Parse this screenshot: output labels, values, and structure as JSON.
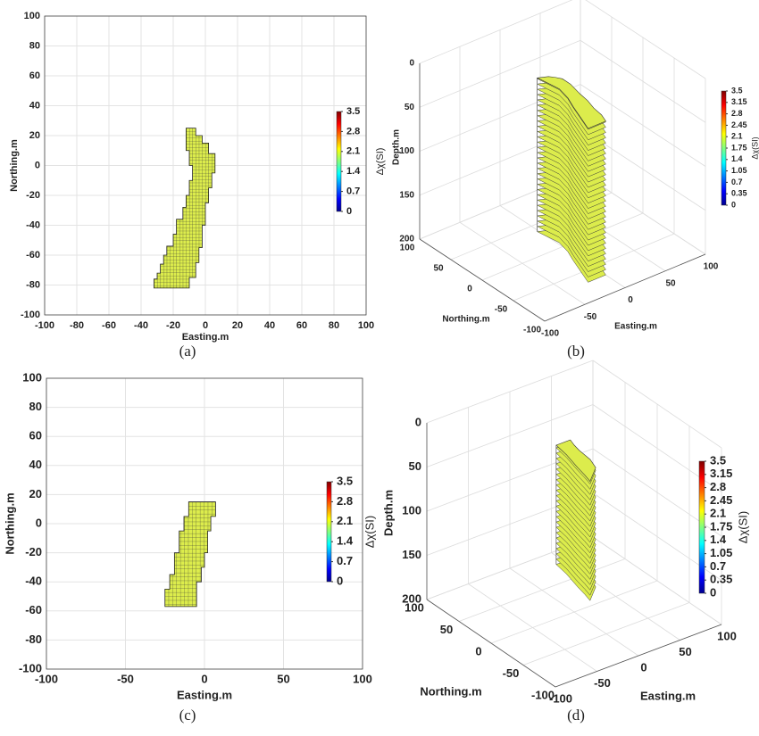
{
  "chart_data": [
    {
      "type": "voxel-map",
      "caption": "(a)",
      "xlabel": "Easting.m",
      "ylabel": "Northing.m",
      "color": "#dcec4c",
      "xlim": [
        -100,
        100
      ],
      "xticks": [
        -100,
        -80,
        -60,
        -40,
        -20,
        0,
        20,
        40,
        60,
        80,
        100
      ],
      "ylim": [
        -100,
        100
      ],
      "yticks": [
        -100,
        -80,
        -60,
        -40,
        -20,
        0,
        20,
        40,
        60,
        80,
        100
      ],
      "x": [
        -12,
        -6,
        -6,
        -2,
        -2,
        2,
        2,
        6,
        6,
        4,
        4,
        2,
        2,
        0,
        0,
        -2,
        -2,
        -4,
        -4,
        -6,
        -6,
        -10,
        -10,
        -32,
        -32,
        -30,
        -30,
        -28,
        -28,
        -26,
        -26,
        -24,
        -24,
        -20,
        -20,
        -18,
        -18,
        -14,
        -14,
        -12,
        -12,
        -10,
        -10,
        -8,
        -8,
        -10,
        -10,
        -12
      ],
      "y": [
        25,
        25,
        20,
        20,
        15,
        15,
        8,
        8,
        -5,
        -5,
        -15,
        -15,
        -25,
        -25,
        -40,
        -40,
        -55,
        -55,
        -65,
        -65,
        -75,
        -75,
        -82,
        -82,
        -76,
        -76,
        -72,
        -72,
        -66,
        -66,
        -60,
        -60,
        -54,
        -54,
        -46,
        -46,
        -36,
        -36,
        -28,
        -28,
        -20,
        -20,
        -10,
        -10,
        0,
        0,
        10,
        10
      ],
      "colorbar": {
        "label": "Δχ(SI)",
        "lim": [
          0,
          3.5
        ],
        "ticks": [
          0,
          0.7,
          1.4,
          2.1,
          2.8,
          3.5
        ]
      }
    },
    {
      "type": "voxel-3d",
      "caption": "(b)",
      "xlabel": "Easting.m",
      "ylabel": "Northing.m",
      "zlabel": "Depth.m",
      "color": "#dcec4c",
      "xlim": [
        -100,
        100
      ],
      "xticks": [
        -100,
        -50,
        0,
        50,
        100
      ],
      "ylim": [
        -100,
        100
      ],
      "yticks": [
        -100,
        -50,
        0,
        50,
        100
      ],
      "zlim": [
        0,
        200
      ],
      "zticks": [
        0,
        50,
        100,
        150,
        200
      ],
      "body": {
        "x": [
          -12,
          -2,
          2,
          6,
          6,
          2,
          0,
          -4,
          -6,
          -10,
          -32,
          -28,
          -24,
          -18,
          -12,
          -8,
          -10
        ],
        "y": [
          25,
          20,
          15,
          8,
          -5,
          -25,
          -40,
          -55,
          -70,
          -82,
          -82,
          -70,
          -58,
          -40,
          -24,
          -5,
          10
        ],
        "depth": [
          15,
          190
        ]
      },
      "colorbar": {
        "label": "Δχ(SI)",
        "lim": [
          0,
          3.5
        ],
        "ticks": [
          0,
          0.35,
          0.7,
          1.05,
          1.4,
          1.75,
          2.1,
          2.45,
          2.8,
          3.15,
          3.5
        ]
      }
    },
    {
      "type": "voxel-map",
      "caption": "(c)",
      "xlabel": "Easting.m",
      "ylabel": "Northing.m",
      "color": "#dcec4c",
      "xlim": [
        -100,
        100
      ],
      "xticks": [
        -100,
        -50,
        0,
        50,
        100
      ],
      "ylim": [
        -100,
        100
      ],
      "yticks": [
        -100,
        -80,
        -60,
        -40,
        -20,
        0,
        20,
        40,
        60,
        80,
        100
      ],
      "x": [
        -10,
        7,
        7,
        4,
        4,
        2,
        2,
        0,
        0,
        -2,
        -2,
        -5,
        -5,
        -25,
        -25,
        -22,
        -22,
        -19,
        -19,
        -16,
        -16,
        -13,
        -13,
        -10
      ],
      "y": [
        15,
        15,
        5,
        5,
        -5,
        -5,
        -20,
        -20,
        -30,
        -30,
        -40,
        -40,
        -57,
        -57,
        -45,
        -45,
        -35,
        -35,
        -20,
        -20,
        -5,
        -5,
        5,
        5
      ],
      "colorbar": {
        "label": "Δχ(SI)",
        "lim": [
          0,
          3.5
        ],
        "ticks": [
          0,
          0.7,
          1.4,
          2.1,
          2.8,
          3.5
        ]
      }
    },
    {
      "type": "voxel-3d",
      "caption": "(d)",
      "xlabel": "Easting.m",
      "ylabel": "Northing.m",
      "zlabel": "Depth.m",
      "color": "#dcec4c",
      "xlim": [
        -100,
        100
      ],
      "xticks": [
        -100,
        -50,
        0,
        50,
        100
      ],
      "ylim": [
        -100,
        100
      ],
      "yticks": [
        -100,
        -50,
        0,
        50,
        100
      ],
      "zlim": [
        0,
        200
      ],
      "zticks": [
        0,
        50,
        100,
        150,
        200
      ],
      "body": {
        "x": [
          -10,
          7,
          4,
          2,
          0,
          -5,
          -25,
          -22,
          -19,
          -13
        ],
        "y": [
          15,
          15,
          5,
          -5,
          -25,
          -40,
          -57,
          -45,
          -30,
          -5
        ],
        "depth": [
          15,
          150
        ]
      },
      "colorbar": {
        "label": "Δχ(SI)",
        "lim": [
          0,
          3.5
        ],
        "ticks": [
          0,
          0.35,
          0.7,
          1.05,
          1.4,
          1.75,
          2.1,
          2.45,
          2.8,
          3.15,
          3.5
        ]
      }
    }
  ]
}
